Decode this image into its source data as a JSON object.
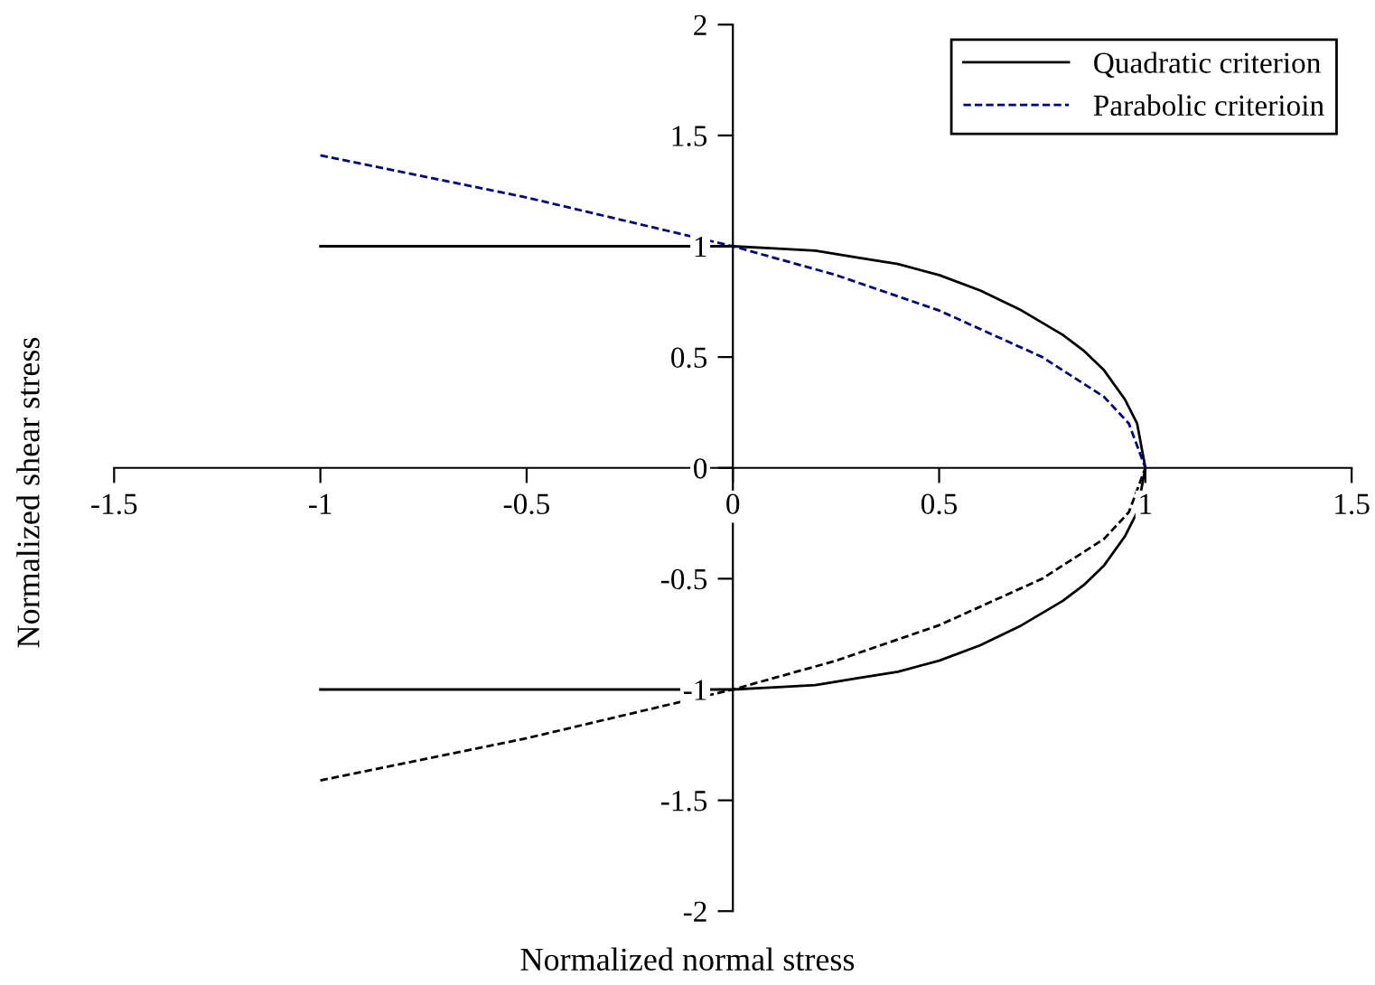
{
  "chart_data": {
    "type": "line",
    "xlabel": "Normalized normal stress",
    "ylabel": "Normalized shear stress",
    "xlim": [
      -1.5,
      1.5
    ],
    "ylim": [
      -2,
      2
    ],
    "xticks": [
      -1.5,
      -1,
      -0.5,
      0,
      0.5,
      1,
      1.5
    ],
    "yticks": [
      -2,
      -1.5,
      -1,
      -0.5,
      0,
      0.5,
      1,
      1.5,
      2
    ],
    "grid": false,
    "legend": "top right",
    "marker": "none",
    "series": [
      {
        "name": "Quadratic criterion",
        "color": "#000000",
        "line_style": "solid",
        "x": [
          -1,
          0,
          0.1,
          0.2,
          0.3,
          0.4,
          0.5,
          0.6,
          0.7,
          0.8,
          0.85,
          0.9,
          0.95,
          0.98,
          1,
          0.98,
          0.95,
          0.9,
          0.85,
          0.8,
          0.7,
          0.6,
          0.5,
          0.4,
          0.3,
          0.2,
          0.1,
          0,
          -1
        ],
        "values": [
          1,
          1,
          0.99,
          0.98,
          0.95,
          0.92,
          0.87,
          0.8,
          0.71,
          0.6,
          0.53,
          0.44,
          0.31,
          0.2,
          0,
          -0.2,
          -0.31,
          -0.44,
          -0.53,
          -0.6,
          -0.71,
          -0.8,
          -0.87,
          -0.92,
          -0.95,
          -0.98,
          -0.99,
          -1,
          -1
        ]
      },
      {
        "name": "Parabolic criterioin",
        "color": "#00008b",
        "line_style": "dashed",
        "x": [
          -1,
          -0.5,
          0,
          0.25,
          0.5,
          0.75,
          0.9,
          0.96,
          1
        ],
        "values": [
          1.41,
          1.22,
          1,
          0.87,
          0.71,
          0.5,
          0.32,
          0.2,
          0
        ]
      },
      {
        "color": "#000000",
        "line_style": "dashed",
        "x": [
          -1,
          -0.5,
          0,
          0.25,
          0.5,
          0.75,
          0.9,
          0.96,
          1
        ],
        "values": [
          -1.41,
          -1.22,
          -1,
          -0.87,
          -0.71,
          -0.5,
          -0.32,
          -0.2,
          0
        ]
      }
    ]
  }
}
